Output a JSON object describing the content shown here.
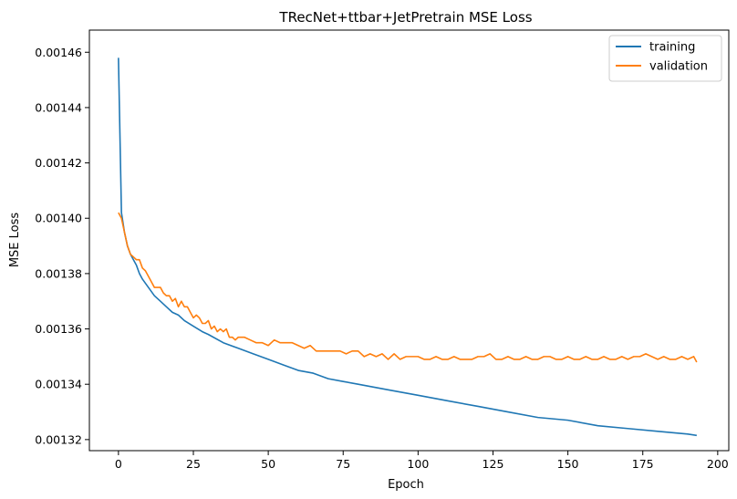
{
  "chart_data": {
    "type": "line",
    "title": "TRecNet+ttbar+JetPretrain MSE Loss",
    "xlabel": "Epoch",
    "ylabel": "MSE Loss",
    "xlim": [
      -9.7,
      203.7
    ],
    "ylim": [
      0.001316,
      0.001468
    ],
    "xticks": [
      0,
      25,
      50,
      75,
      100,
      125,
      150,
      175,
      200
    ],
    "yticks": [
      0.00132,
      0.00134,
      0.00136,
      0.00138,
      0.0014,
      0.00142,
      0.00144,
      0.00146
    ],
    "ytick_labels": [
      "0.00132",
      "0.00134",
      "0.00136",
      "0.00138",
      "0.00140",
      "0.00142",
      "0.00144",
      "0.00146"
    ],
    "grid": false,
    "legend_position": "top-right",
    "series": [
      {
        "name": "training",
        "color": "#1f77b4",
        "x": [
          0,
          1,
          2,
          3,
          4,
          5,
          6,
          7,
          8,
          10,
          12,
          14,
          16,
          18,
          20,
          22,
          25,
          28,
          30,
          35,
          40,
          45,
          50,
          55,
          60,
          65,
          70,
          75,
          80,
          90,
          100,
          110,
          120,
          130,
          140,
          150,
          160,
          170,
          180,
          190,
          193
        ],
        "y": [
          0.001458,
          0.001402,
          0.001395,
          0.00139,
          0.001387,
          0.001385,
          0.001383,
          0.00138,
          0.001378,
          0.001375,
          0.001372,
          0.00137,
          0.001368,
          0.001366,
          0.001365,
          0.001363,
          0.001361,
          0.001359,
          0.001358,
          0.001355,
          0.001353,
          0.001351,
          0.001349,
          0.001347,
          0.001345,
          0.001344,
          0.001342,
          0.001341,
          0.00134,
          0.001338,
          0.001336,
          0.001334,
          0.001332,
          0.00133,
          0.001328,
          0.001327,
          0.001325,
          0.001324,
          0.001323,
          0.001322,
          0.0013215
        ]
      },
      {
        "name": "validation",
        "color": "#ff7f0e",
        "x": [
          0,
          1,
          2,
          3,
          4,
          5,
          6,
          7,
          8,
          9,
          10,
          11,
          12,
          13,
          14,
          15,
          16,
          17,
          18,
          19,
          20,
          21,
          22,
          23,
          24,
          25,
          26,
          27,
          28,
          29,
          30,
          31,
          32,
          33,
          34,
          35,
          36,
          37,
          38,
          39,
          40,
          42,
          44,
          46,
          48,
          50,
          52,
          54,
          56,
          58,
          60,
          62,
          64,
          66,
          68,
          70,
          72,
          74,
          76,
          78,
          80,
          82,
          84,
          86,
          88,
          90,
          92,
          94,
          96,
          98,
          100,
          102,
          104,
          106,
          108,
          110,
          112,
          114,
          116,
          118,
          120,
          122,
          124,
          126,
          128,
          130,
          132,
          134,
          136,
          138,
          140,
          142,
          144,
          146,
          148,
          150,
          152,
          154,
          156,
          158,
          160,
          162,
          164,
          166,
          168,
          170,
          172,
          174,
          176,
          178,
          180,
          182,
          184,
          186,
          188,
          190,
          192,
          193
        ],
        "y": [
          0.001402,
          0.0014,
          0.001395,
          0.00139,
          0.001387,
          0.001386,
          0.001385,
          0.001385,
          0.001382,
          0.001381,
          0.001379,
          0.001377,
          0.001375,
          0.001375,
          0.001375,
          0.001373,
          0.001372,
          0.001372,
          0.00137,
          0.001371,
          0.001368,
          0.00137,
          0.001368,
          0.001368,
          0.001366,
          0.001364,
          0.001365,
          0.001364,
          0.001362,
          0.001362,
          0.001363,
          0.00136,
          0.001361,
          0.001359,
          0.00136,
          0.001359,
          0.00136,
          0.001357,
          0.001357,
          0.001356,
          0.001357,
          0.001357,
          0.001356,
          0.001355,
          0.001355,
          0.001354,
          0.001356,
          0.001355,
          0.001355,
          0.001355,
          0.001354,
          0.001353,
          0.001354,
          0.001352,
          0.001352,
          0.001352,
          0.001352,
          0.001352,
          0.001351,
          0.001352,
          0.001352,
          0.00135,
          0.001351,
          0.00135,
          0.001351,
          0.001349,
          0.001351,
          0.001349,
          0.00135,
          0.00135,
          0.00135,
          0.001349,
          0.001349,
          0.00135,
          0.001349,
          0.001349,
          0.00135,
          0.001349,
          0.001349,
          0.001349,
          0.00135,
          0.00135,
          0.001351,
          0.001349,
          0.001349,
          0.00135,
          0.001349,
          0.001349,
          0.00135,
          0.001349,
          0.001349,
          0.00135,
          0.00135,
          0.001349,
          0.001349,
          0.00135,
          0.001349,
          0.001349,
          0.00135,
          0.001349,
          0.001349,
          0.00135,
          0.001349,
          0.001349,
          0.00135,
          0.001349,
          0.00135,
          0.00135,
          0.001351,
          0.00135,
          0.001349,
          0.00135,
          0.001349,
          0.001349,
          0.00135,
          0.001349,
          0.00135,
          0.001348
        ]
      }
    ]
  }
}
